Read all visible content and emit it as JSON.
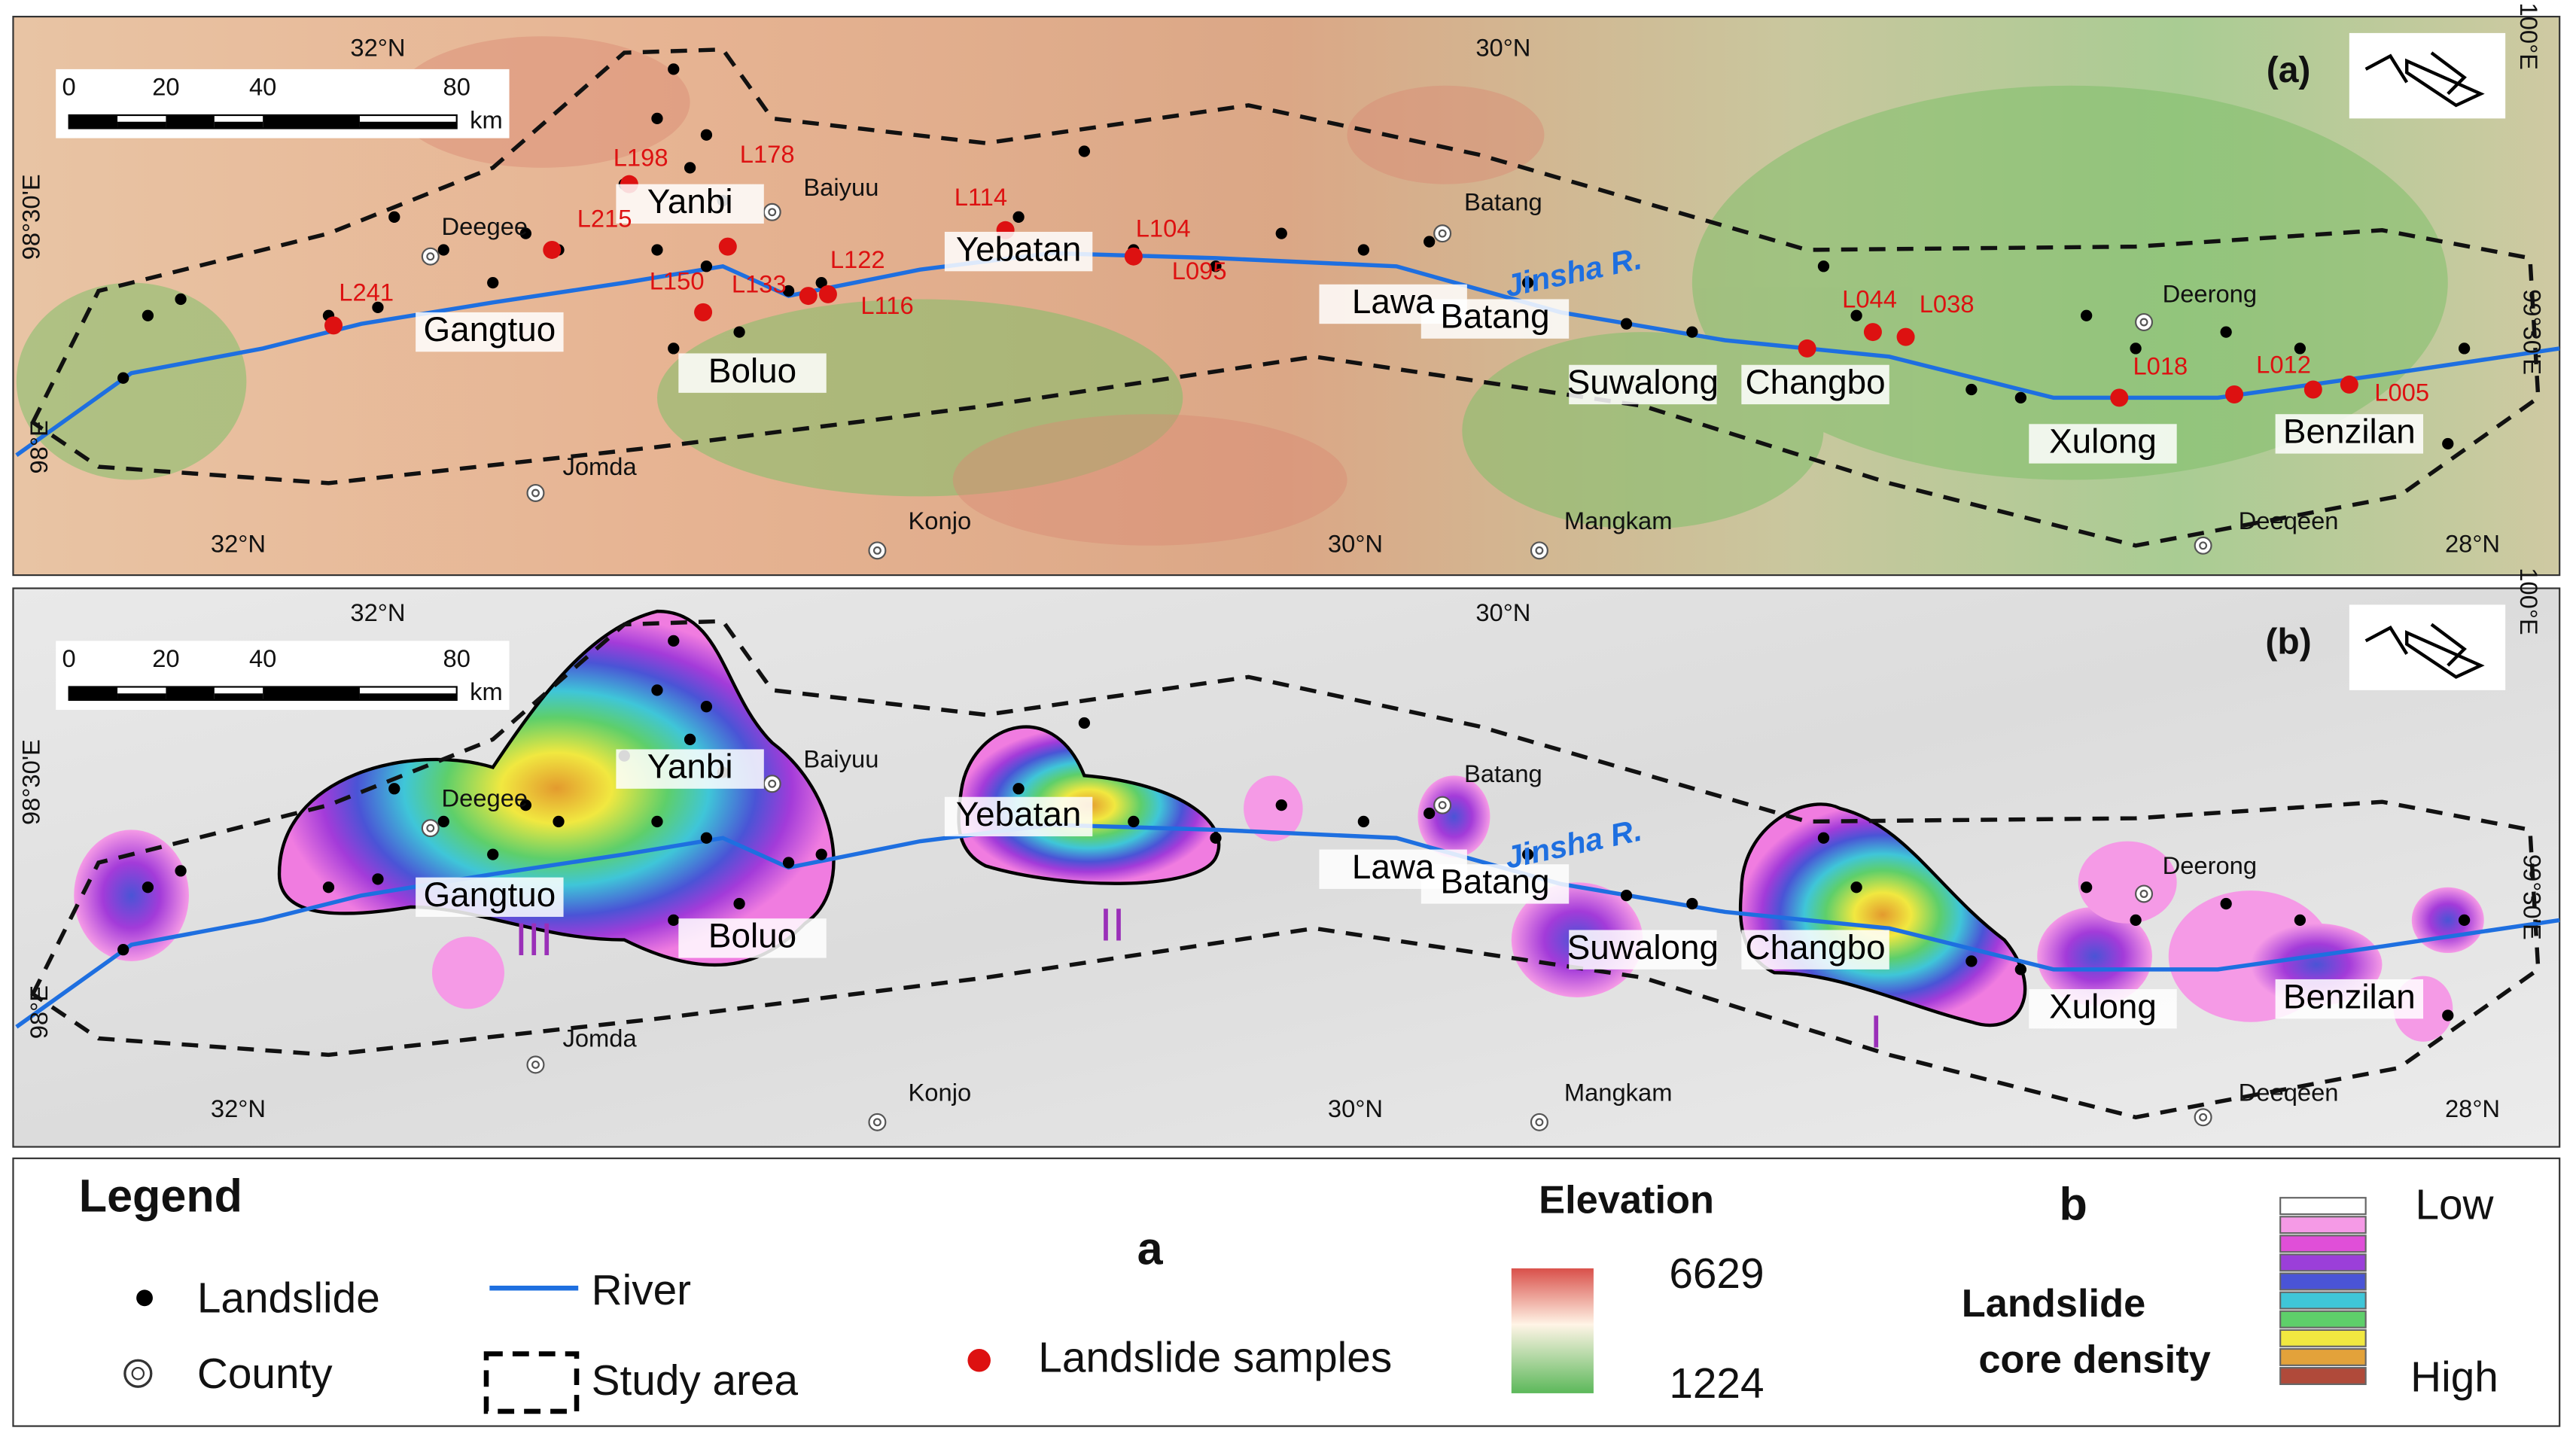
{
  "panels": [
    {
      "label": "(a)",
      "scale_bar": {
        "ticks": [
          0,
          20,
          40,
          80
        ],
        "unit": "km"
      },
      "coordinates": [
        "32°N",
        "30°N",
        "100°E",
        "98°30'E",
        "98°E",
        "32°N",
        "30°N",
        "28°N",
        "99°30'E"
      ],
      "counties": [
        "Deegee",
        "Baiyuu",
        "Batang",
        "Deerong",
        "Jomda",
        "Konjo",
        "Mangkam",
        "Deeqeen"
      ],
      "sites": [
        "Gangtuo",
        "Yanbi",
        "Boluo",
        "Yebatan",
        "Lawa",
        "Batang",
        "Suwalong",
        "Changbo",
        "Xulong",
        "Benzilan"
      ],
      "river_label": "Jinsha R.",
      "samples": [
        "L241",
        "L215",
        "L198",
        "L178",
        "L150",
        "L133",
        "L122",
        "L116",
        "L114",
        "L104",
        "L095",
        "L044",
        "L038",
        "L018",
        "L012",
        "L005"
      ]
    },
    {
      "label": "(b)",
      "scale_bar": {
        "ticks": [
          0,
          20,
          40,
          80
        ],
        "unit": "km"
      },
      "coordinates": [
        "32°N",
        "30°N",
        "100°E",
        "98°30'E",
        "98°E",
        "32°N",
        "30°N",
        "28°N",
        "99°30'E"
      ],
      "counties": [
        "Deegee",
        "Baiyuu",
        "Batang",
        "Deerong",
        "Jomda",
        "Konjo",
        "Mangkam",
        "Deeqeen"
      ],
      "sites": [
        "Gangtuo",
        "Yanbi",
        "Boluo",
        "Yebatan",
        "Lawa",
        "Batang",
        "Suwalong",
        "Changbo",
        "Xulong",
        "Benzilan"
      ],
      "river_label": "Jinsha R.",
      "zones": [
        "III",
        "II",
        "I"
      ]
    }
  ],
  "legend": {
    "title": "Legend",
    "landslide": "Landslide",
    "county": "County",
    "river": "River",
    "study_area": "Study area",
    "a": {
      "label": "a",
      "samples": "Landslide samples"
    },
    "elevation": {
      "title": "Elevation",
      "max": 6629,
      "min": 1224
    },
    "b": {
      "label": "b",
      "title_1": "Landslide",
      "title_2": "core density",
      "low": "Low",
      "high": "High"
    }
  }
}
